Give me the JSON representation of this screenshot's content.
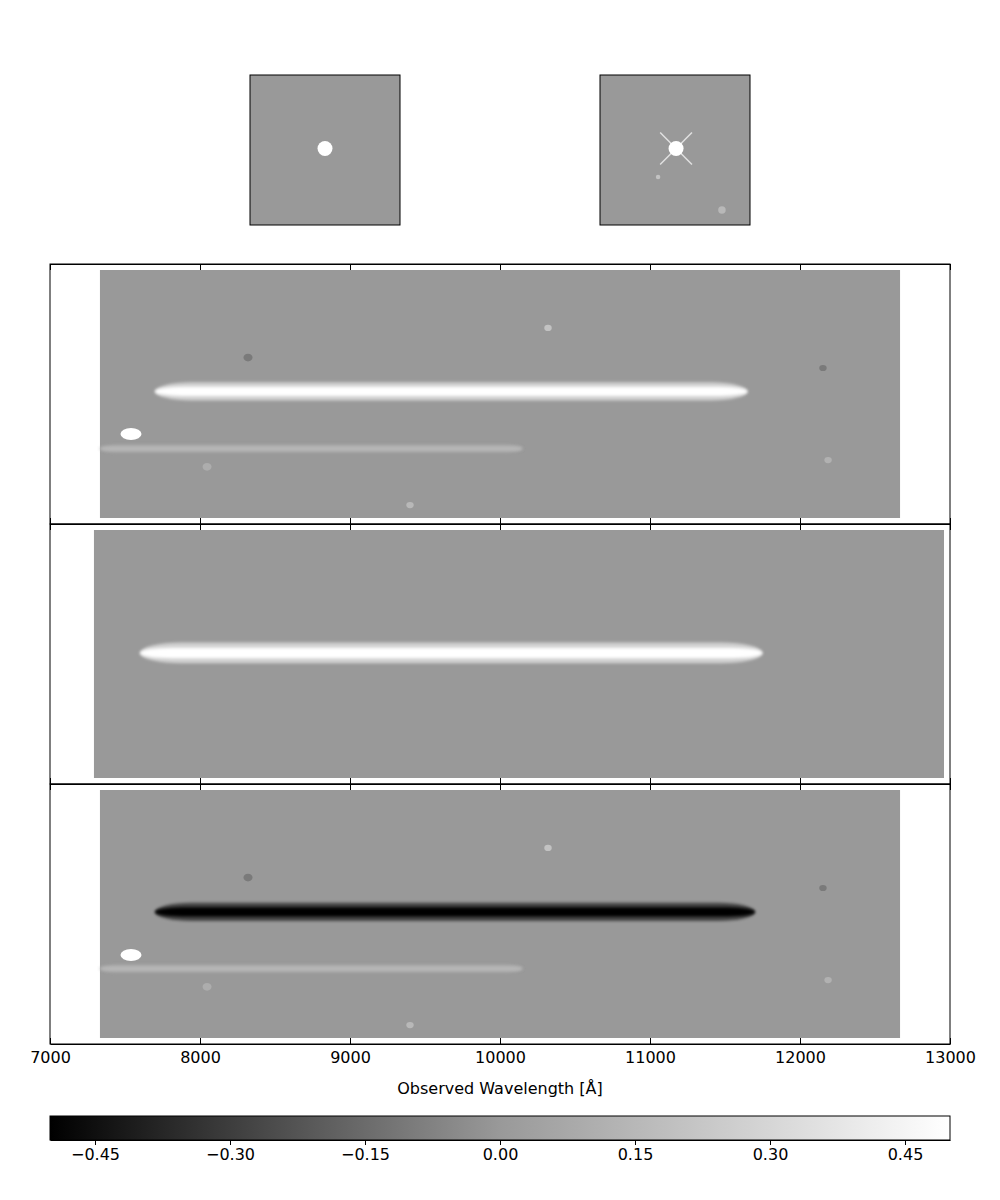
{
  "chart_data": {
    "type": "image",
    "xlabel": "Observed Wavelength [Å]",
    "xlim": [
      7000,
      13000
    ],
    "xticks": [
      7000,
      8000,
      9000,
      10000,
      11000,
      12000,
      13000
    ],
    "tick_labels": "x",
    "thumbnails": [
      {
        "xlim": [
          0,
          100
        ],
        "ylim": [
          0,
          100
        ],
        "background": 0,
        "sources": [
          {
            "x": 50,
            "y": 51,
            "radius": 5,
            "value": 0.5
          }
        ]
      },
      {
        "xlim": [
          0,
          100
        ],
        "ylim": [
          0,
          100
        ],
        "background": 0,
        "sources": [
          {
            "x": 50.7,
            "y": 51,
            "radius": 5,
            "value": 0.5,
            "marker": "star"
          },
          {
            "x": 38.7,
            "y": 32,
            "radius": 1.5,
            "value": 0.2
          },
          {
            "x": 81.3,
            "y": 10,
            "radius": 2.5,
            "value": 0.15
          }
        ]
      }
    ],
    "panels": [
      {
        "ylim": [
          0,
          100
        ],
        "extent": [
          7333,
          12667
        ],
        "background": 0,
        "traces": [
          {
            "x_start": 7700,
            "x_end": 11650,
            "y": 51,
            "width": 3.5,
            "value": 0.5
          },
          {
            "x_start": 7333,
            "x_end": 10150,
            "y": 29,
            "width": 1.5,
            "value": 0.15
          }
        ],
        "spots": [
          {
            "x": 7540,
            "y": 34.6,
            "rx": 70,
            "ry": 2.3,
            "value": 0.5
          },
          {
            "x": 10320,
            "y": 75.4,
            "rx": 25,
            "ry": 1.2,
            "value": 0.2
          },
          {
            "x": 8320,
            "y": 64,
            "rx": 30,
            "ry": 1.5,
            "value": -0.1
          },
          {
            "x": 12153,
            "y": 60,
            "rx": 25,
            "ry": 1.2,
            "value": -0.1
          },
          {
            "x": 9400,
            "y": 7.3,
            "rx": 25,
            "ry": 1.2,
            "value": 0.15
          },
          {
            "x": 12187,
            "y": 24.6,
            "rx": 25,
            "ry": 1.2,
            "value": 0.12
          },
          {
            "x": 8047,
            "y": 22,
            "rx": 30,
            "ry": 1.5,
            "value": 0.1
          }
        ]
      },
      {
        "ylim": [
          0,
          100
        ],
        "extent": [
          7293,
          12960
        ],
        "background": 0,
        "traces": [
          {
            "x_start": 7600,
            "x_end": 11750,
            "y": 50.4,
            "width": 4,
            "value": 0.5
          }
        ],
        "spots": []
      },
      {
        "ylim": [
          0,
          100
        ],
        "extent": [
          7333,
          12667
        ],
        "background": 0,
        "traces": [
          {
            "x_start": 7700,
            "x_end": 11700,
            "y": 50.8,
            "width": 3.5,
            "value": -0.5
          },
          {
            "x_start": 7333,
            "x_end": 10150,
            "y": 29,
            "width": 1.5,
            "value": 0.15
          }
        ],
        "spots": [
          {
            "x": 7540,
            "y": 34.2,
            "rx": 70,
            "ry": 2.3,
            "value": 0.5
          },
          {
            "x": 10320,
            "y": 75.4,
            "rx": 25,
            "ry": 1.2,
            "value": 0.2
          },
          {
            "x": 8320,
            "y": 64,
            "rx": 30,
            "ry": 1.5,
            "value": -0.1
          },
          {
            "x": 12153,
            "y": 60,
            "rx": 25,
            "ry": 1.2,
            "value": -0.1
          },
          {
            "x": 9400,
            "y": 7.3,
            "rx": 25,
            "ry": 1.2,
            "value": 0.15
          },
          {
            "x": 12187,
            "y": 24.6,
            "rx": 25,
            "ry": 1.2,
            "value": 0.12
          },
          {
            "x": 8047,
            "y": 22,
            "rx": 30,
            "ry": 1.5,
            "value": 0.1
          }
        ]
      }
    ],
    "colorbar": {
      "range": [
        -0.5,
        0.5
      ],
      "ticks": [
        {
          "value": -0.45,
          "label": "−0.45"
        },
        {
          "value": -0.3,
          "label": "−0.30"
        },
        {
          "value": -0.15,
          "label": "−0.15"
        },
        {
          "value": 0,
          "label": "0.00"
        },
        0.15,
        {
          "value": 0.3,
          "label": "0.30"
        },
        0.45
      ]
    }
  }
}
